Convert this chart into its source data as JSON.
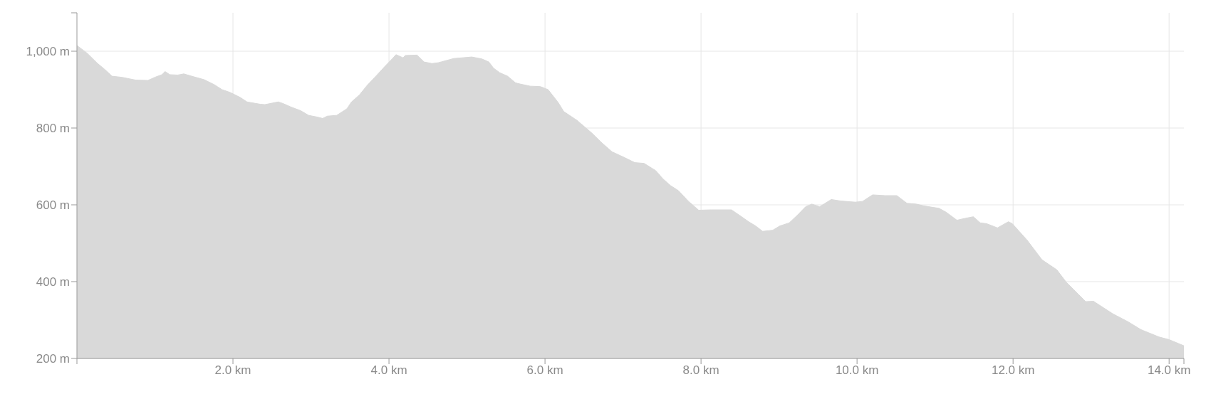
{
  "chart_data": {
    "type": "area",
    "color": "#d9d9d9",
    "x": [
      0,
      0.13,
      0.26,
      0.36,
      0.45,
      0.58,
      0.75,
      0.91,
      1.01,
      1.09,
      1.13,
      1.19,
      1.29,
      1.37,
      1.47,
      1.63,
      1.76,
      1.86,
      1.96,
      2.09,
      2.18,
      2.35,
      2.41,
      2.58,
      2.64,
      2.74,
      2.87,
      2.97,
      3.07,
      3.15,
      3.21,
      3.33,
      3.46,
      3.52,
      3.62,
      3.72,
      3.85,
      3.95,
      4.05,
      4.09,
      4.18,
      4.21,
      4.36,
      4.45,
      4.55,
      4.63,
      4.83,
      5.06,
      5.19,
      5.28,
      5.34,
      5.42,
      5.52,
      5.62,
      5.65,
      5.81,
      5.94,
      6.04,
      6.17,
      6.24,
      6.41,
      6.6,
      6.73,
      6.86,
      7.02,
      7.15,
      7.27,
      7.42,
      7.51,
      7.61,
      7.71,
      7.84,
      7.97,
      8.13,
      8.39,
      8.52,
      8.61,
      8.7,
      8.79,
      8.92,
      9.01,
      9.13,
      9.24,
      9.34,
      9.42,
      9.52,
      9.67,
      9.79,
      9.98,
      10.07,
      10.2,
      10.36,
      10.51,
      10.64,
      10.76,
      10.86,
      11.05,
      11.14,
      11.28,
      11.39,
      11.49,
      11.58,
      11.66,
      11.8,
      11.94,
      11.99,
      12.18,
      12.37,
      12.56,
      12.68,
      12.93,
      13.03,
      13.28,
      13.47,
      13.64,
      13.87,
      14,
      14.19
    ],
    "values": [
      1015,
      995,
      969,
      952,
      935,
      932,
      925,
      924,
      933,
      939,
      947,
      939,
      938,
      941,
      935,
      926,
      913,
      900,
      893,
      880,
      868,
      862,
      861,
      868,
      864,
      855,
      845,
      833,
      829,
      825,
      831,
      833,
      850,
      868,
      886,
      911,
      939,
      961,
      982,
      991,
      983,
      989,
      990,
      972,
      968,
      970,
      981,
      985,
      980,
      972,
      956,
      944,
      935,
      918,
      916,
      909,
      908,
      900,
      866,
      843,
      820,
      787,
      761,
      738,
      723,
      710,
      708,
      689,
      668,
      650,
      637,
      609,
      586,
      587,
      587,
      569,
      556,
      545,
      531,
      534,
      545,
      553,
      574,
      595,
      602,
      595,
      614,
      610,
      607,
      609,
      626,
      624,
      624,
      604,
      602,
      597,
      591,
      581,
      560,
      565,
      569,
      553,
      551,
      540,
      556,
      551,
      508,
      457,
      431,
      399,
      348,
      349,
      316,
      296,
      275,
      256,
      249,
      233
    ],
    "xlim": [
      0,
      14.19
    ],
    "xticks": [
      {
        "value": 0,
        "label": null
      },
      {
        "value": 2,
        "label": "2.0 km"
      },
      {
        "value": 4,
        "label": "4.0 km"
      },
      {
        "value": 6,
        "label": "6.0 km"
      },
      {
        "value": 8,
        "label": "8.0 km"
      },
      {
        "value": 10,
        "label": "10.0 km"
      },
      {
        "value": 12,
        "label": "12.0 km"
      },
      {
        "value": 14,
        "label": "14.0 km"
      },
      {
        "value": 14.19,
        "label": null
      }
    ],
    "ylim": [
      200,
      1100
    ],
    "yticks": [
      {
        "value": 200,
        "label": "200 m"
      },
      {
        "value": 400,
        "label": "400 m"
      },
      {
        "value": 600,
        "label": "600 m"
      },
      {
        "value": 800,
        "label": "800 m"
      },
      {
        "value": 1000,
        "label": "1,000 m"
      },
      {
        "value": 1100,
        "label": null
      }
    ],
    "grid": true
  }
}
